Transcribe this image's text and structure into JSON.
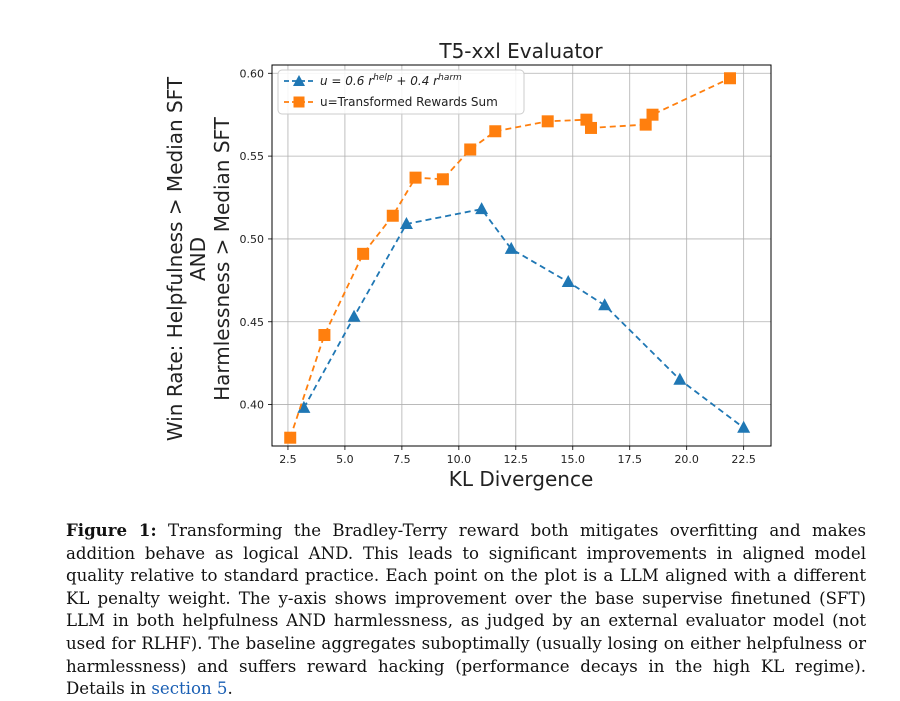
{
  "chart_data": {
    "type": "line",
    "title": "T5-xxl Evaluator",
    "xlabel": "KL Divergence",
    "ylabel_lines": [
      "Win Rate: Helpfulness > Median SFT",
      "AND",
      "Harmlessness > Median SFT"
    ],
    "xlim": [
      1.8,
      23.7
    ],
    "ylim": [
      0.375,
      0.605
    ],
    "xticks": [
      2.5,
      5.0,
      7.5,
      10.0,
      12.5,
      15.0,
      17.5,
      20.0,
      22.5
    ],
    "xtick_labels": [
      "2.5",
      "5.0",
      "7.5",
      "10.0",
      "12.5",
      "15.0",
      "17.5",
      "20.0",
      "22.5"
    ],
    "yticks": [
      0.4,
      0.45,
      0.5,
      0.55,
      0.6
    ],
    "ytick_labels": [
      "0.40",
      "0.45",
      "0.50",
      "0.55",
      "0.60"
    ],
    "grid": true,
    "legend_position": "top-left",
    "series": [
      {
        "name": "u = 0.6 r^help + 0.4 r^harm",
        "legend_parts": [
          "u = 0.6 r",
          "help",
          " + 0.4 r",
          "harm"
        ],
        "color": "#1f77b4",
        "marker": "triangle",
        "x": [
          3.2,
          5.4,
          7.7,
          11.0,
          12.3,
          14.8,
          16.4,
          19.7,
          22.5
        ],
        "y": [
          0.398,
          0.453,
          0.509,
          0.518,
          0.494,
          0.474,
          0.46,
          0.415,
          0.386
        ]
      },
      {
        "name": "u=Transformed Rewards Sum",
        "color": "#ff7f0e",
        "marker": "square",
        "x": [
          2.6,
          4.1,
          5.8,
          7.1,
          8.1,
          9.3,
          10.5,
          11.6,
          13.9,
          15.6,
          15.8,
          18.2,
          18.5,
          21.9
        ],
        "y": [
          0.38,
          0.442,
          0.491,
          0.514,
          0.537,
          0.536,
          0.554,
          0.565,
          0.571,
          0.572,
          0.567,
          0.569,
          0.575,
          0.597
        ]
      }
    ]
  },
  "caption": {
    "label": "Figure 1:",
    "text_before_link": " Transforming the Bradley-Terry reward both mitigates overfitting and makes addition behave as logical AND. This leads to significant improvements in aligned model quality relative to standard practice. Each point on the plot is a LLM aligned with a different KL penalty weight. The y-axis shows improvement over the base supervise finetuned (SFT) LLM in both helpfulness AND harmlessness, as judged by an external evaluator model (not used for RLHF). The baseline aggregates suboptimally (usually losing on either helpfulness or harmlessness) and suffers reward hacking (performance decays in the high KL regime). Details in ",
    "link_text": "section 5",
    "text_after_link": "."
  }
}
